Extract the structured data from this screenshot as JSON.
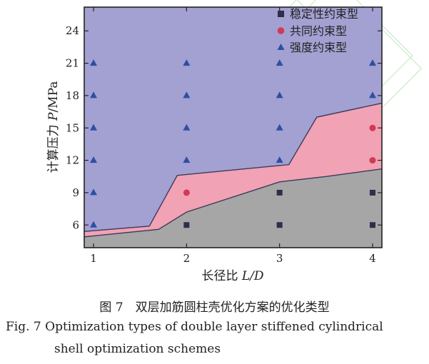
{
  "chart_data": {
    "type": "scatter",
    "xlabel_prefix": "长径比 ",
    "xlabel_var": "L/D",
    "ylabel_prefix": "计算压力 ",
    "ylabel_var": "P",
    "ylabel_unit": "/MPa",
    "xlim": [
      0.9,
      4.1
    ],
    "ylim": [
      3.9,
      26.2
    ],
    "xticks": [
      1,
      2,
      3,
      4
    ],
    "yticks": [
      6,
      9,
      12,
      15,
      18,
      21,
      24
    ],
    "legend_position": "top-right",
    "regions": [
      {
        "name": "强度约束型",
        "color": "#a3a0d2",
        "upper": [
          [
            0.9,
            26.2
          ],
          [
            4.1,
            26.2
          ]
        ],
        "lower": [
          [
            0.9,
            5.4
          ],
          [
            1.6,
            5.9
          ],
          [
            1.9,
            10.6
          ],
          [
            3.1,
            11.6
          ],
          [
            3.4,
            16.0
          ],
          [
            4.1,
            17.3
          ]
        ]
      },
      {
        "name": "共同约束型",
        "color": "#f1a2b4",
        "upper": [
          [
            0.9,
            5.4
          ],
          [
            1.6,
            5.9
          ],
          [
            1.9,
            10.6
          ],
          [
            3.1,
            11.6
          ],
          [
            3.4,
            16.0
          ],
          [
            4.1,
            17.3
          ]
        ],
        "lower": [
          [
            0.9,
            4.9
          ],
          [
            1.7,
            5.6
          ],
          [
            2.0,
            7.2
          ],
          [
            3.0,
            10.0
          ],
          [
            3.5,
            10.5
          ],
          [
            4.1,
            11.2
          ]
        ]
      },
      {
        "name": "稳定性约束型",
        "color": "#a6a6a6",
        "upper": [
          [
            0.9,
            4.9
          ],
          [
            1.7,
            5.6
          ],
          [
            2.0,
            7.2
          ],
          [
            3.0,
            10.0
          ],
          [
            3.5,
            10.5
          ],
          [
            4.1,
            11.2
          ]
        ],
        "lower": [
          [
            0.9,
            3.9
          ],
          [
            4.1,
            3.9
          ]
        ]
      }
    ],
    "series": [
      {
        "name": "稳定性约束型",
        "marker": "square",
        "color": "#2e2e4a",
        "points": [
          [
            2,
            6
          ],
          [
            3,
            6
          ],
          [
            3,
            9
          ],
          [
            4,
            6
          ],
          [
            4,
            9
          ]
        ]
      },
      {
        "name": "共同约束型",
        "marker": "circle",
        "color": "#d03a55",
        "points": [
          [
            2,
            9
          ],
          [
            4,
            12
          ],
          [
            4,
            15
          ]
        ]
      },
      {
        "name": "强度约束型",
        "marker": "triangle",
        "color": "#2d4fa3",
        "points": [
          [
            1,
            6
          ],
          [
            1,
            9
          ],
          [
            1,
            12
          ],
          [
            1,
            15
          ],
          [
            1,
            18
          ],
          [
            1,
            21
          ],
          [
            2,
            12
          ],
          [
            2,
            15
          ],
          [
            2,
            18
          ],
          [
            2,
            21
          ],
          [
            3,
            12
          ],
          [
            3,
            15
          ],
          [
            3,
            18
          ],
          [
            3,
            21
          ],
          [
            4,
            18
          ],
          [
            4,
            21
          ]
        ]
      }
    ]
  },
  "caption": {
    "zh": "图 7　双层加筋圆柱壳优化方案的优化类型",
    "en_line1": "Fig. 7   Optimization types of double layer stiffened cylindrical",
    "en_line2": "shell optimization schemes"
  }
}
